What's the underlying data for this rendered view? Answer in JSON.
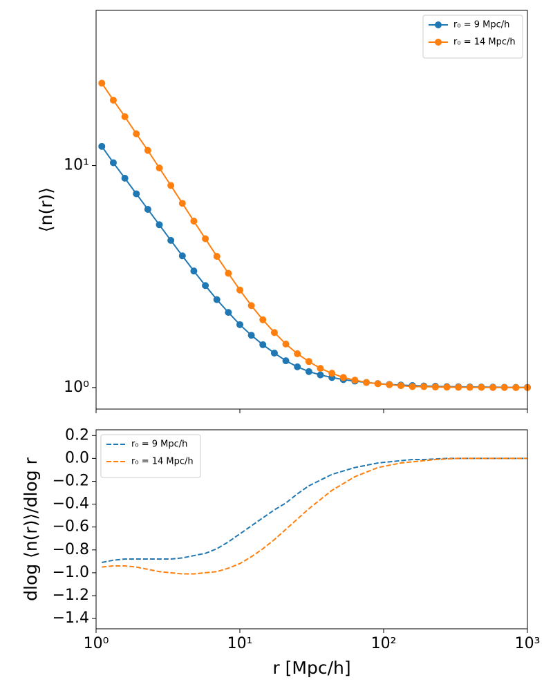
{
  "chart_data": [
    {
      "type": "line",
      "xscale": "log",
      "yscale": "log",
      "marker": "o",
      "linestyle": "solid",
      "legend": "upper right",
      "ylabel": "⟨n(r)⟩",
      "xlim": [
        1,
        1000
      ],
      "ylim": [
        0.8,
        50
      ],
      "xticks": [
        1,
        10,
        100,
        1000
      ],
      "yticks": [
        {
          "value": 1,
          "label": "10⁰"
        },
        {
          "value": 10,
          "label": "10¹"
        }
      ],
      "x": [
        1.096,
        1.318,
        1.585,
        1.905,
        2.291,
        2.754,
        3.311,
        3.981,
        4.786,
        5.754,
        6.918,
        8.318,
        10,
        12.02,
        14.45,
        17.38,
        20.89,
        25.12,
        30.2,
        36.31,
        43.65,
        52.48,
        63.1,
        75.86,
        91.2,
        109.6,
        131.8,
        158.5,
        190.5,
        229.1,
        275.4,
        331.1,
        398.1,
        478.6,
        575.4,
        691.8,
        831.8,
        1000
      ],
      "series": [
        {
          "name": "r₀ = 9 Mpc/h",
          "color": "#1f77b4",
          "values": [
            12.2,
            10.3,
            8.77,
            7.46,
            6.35,
            5.41,
            4.6,
            3.92,
            3.35,
            2.88,
            2.49,
            2.18,
            1.92,
            1.72,
            1.56,
            1.43,
            1.32,
            1.24,
            1.18,
            1.14,
            1.11,
            1.086,
            1.069,
            1.054,
            1.042,
            1.033,
            1.026,
            1.021,
            1.016,
            1.013,
            1.01,
            1.008,
            1.006,
            1.005,
            1.004,
            1.003,
            1.002,
            1.002
          ]
        },
        {
          "name": "r₀ = 14 Mpc/h",
          "color": "#ff7f0e",
          "values": [
            23.5,
            19.7,
            16.6,
            13.9,
            11.7,
            9.75,
            8.13,
            6.76,
            5.62,
            4.68,
            3.9,
            3.27,
            2.75,
            2.34,
            2.02,
            1.77,
            1.57,
            1.42,
            1.31,
            1.22,
            1.16,
            1.11,
            1.08,
            1.054,
            1.04,
            1.03,
            1.02,
            1.01,
            1.01,
            1.006,
            1.004,
            1.003,
            1.002,
            1.002,
            1.001,
            1.001,
            1.0,
            1.0
          ]
        }
      ]
    },
    {
      "type": "line",
      "xscale": "log",
      "marker": "none",
      "linestyle": "dashed",
      "legend": "upper left",
      "xlabel": "r [Mpc/h]",
      "ylabel": "dlog ⟨n(r)⟩/dlog r",
      "xlim": [
        1,
        1000
      ],
      "ylim": [
        -1.49,
        0.25
      ],
      "xticks": [
        {
          "value": 1,
          "label": "10⁰"
        },
        {
          "value": 10,
          "label": "10¹"
        },
        {
          "value": 100,
          "label": "10²"
        },
        {
          "value": 1000,
          "label": "10³"
        }
      ],
      "yticks": [
        0.2,
        {
          "value": 0,
          "label": "0.0"
        },
        {
          "value": -0.2,
          "label": "−0.2"
        },
        {
          "value": -0.4,
          "label": "−0.4"
        },
        {
          "value": -0.6,
          "label": "−0.6"
        },
        {
          "value": -0.8,
          "label": "−0.8"
        },
        {
          "value": -1.0,
          "label": "−1.0"
        },
        {
          "value": -1.2,
          "label": "−1.2"
        },
        {
          "value": -1.4,
          "label": "−1.4"
        }
      ],
      "x": [
        1.096,
        1.318,
        1.585,
        1.905,
        2.291,
        2.754,
        3.311,
        3.981,
        4.786,
        5.754,
        6.918,
        8.318,
        10,
        12.02,
        14.45,
        17.38,
        20.89,
        25.12,
        30.2,
        36.31,
        43.65,
        52.48,
        63.1,
        75.86,
        91.2,
        109.6,
        131.8,
        158.5,
        190.5,
        229.1,
        275.4,
        331.1,
        398.1,
        478.6,
        575.4,
        691.8,
        831.8,
        1000
      ],
      "series": [
        {
          "name": "r₀ = 9 Mpc/h",
          "color": "#1f77b4",
          "values": [
            -0.91,
            -0.89,
            -0.88,
            -0.88,
            -0.88,
            -0.88,
            -0.88,
            -0.87,
            -0.85,
            -0.83,
            -0.79,
            -0.73,
            -0.66,
            -0.59,
            -0.52,
            -0.45,
            -0.39,
            -0.31,
            -0.24,
            -0.19,
            -0.14,
            -0.11,
            -0.08,
            -0.06,
            -0.04,
            -0.03,
            -0.02,
            -0.01,
            -0.01,
            -0.005,
            0,
            0,
            0,
            0,
            0,
            0,
            0,
            0
          ]
        },
        {
          "name": "r₀ = 14 Mpc/h",
          "color": "#ff7f0e",
          "values": [
            -0.95,
            -0.94,
            -0.94,
            -0.95,
            -0.97,
            -0.99,
            -1.0,
            -1.01,
            -1.01,
            -1.0,
            -0.99,
            -0.96,
            -0.92,
            -0.86,
            -0.79,
            -0.71,
            -0.62,
            -0.53,
            -0.44,
            -0.36,
            -0.28,
            -0.22,
            -0.16,
            -0.12,
            -0.08,
            -0.06,
            -0.04,
            -0.03,
            -0.02,
            -0.01,
            -0.005,
            0,
            0,
            0,
            0,
            0,
            0,
            0
          ]
        }
      ]
    }
  ]
}
